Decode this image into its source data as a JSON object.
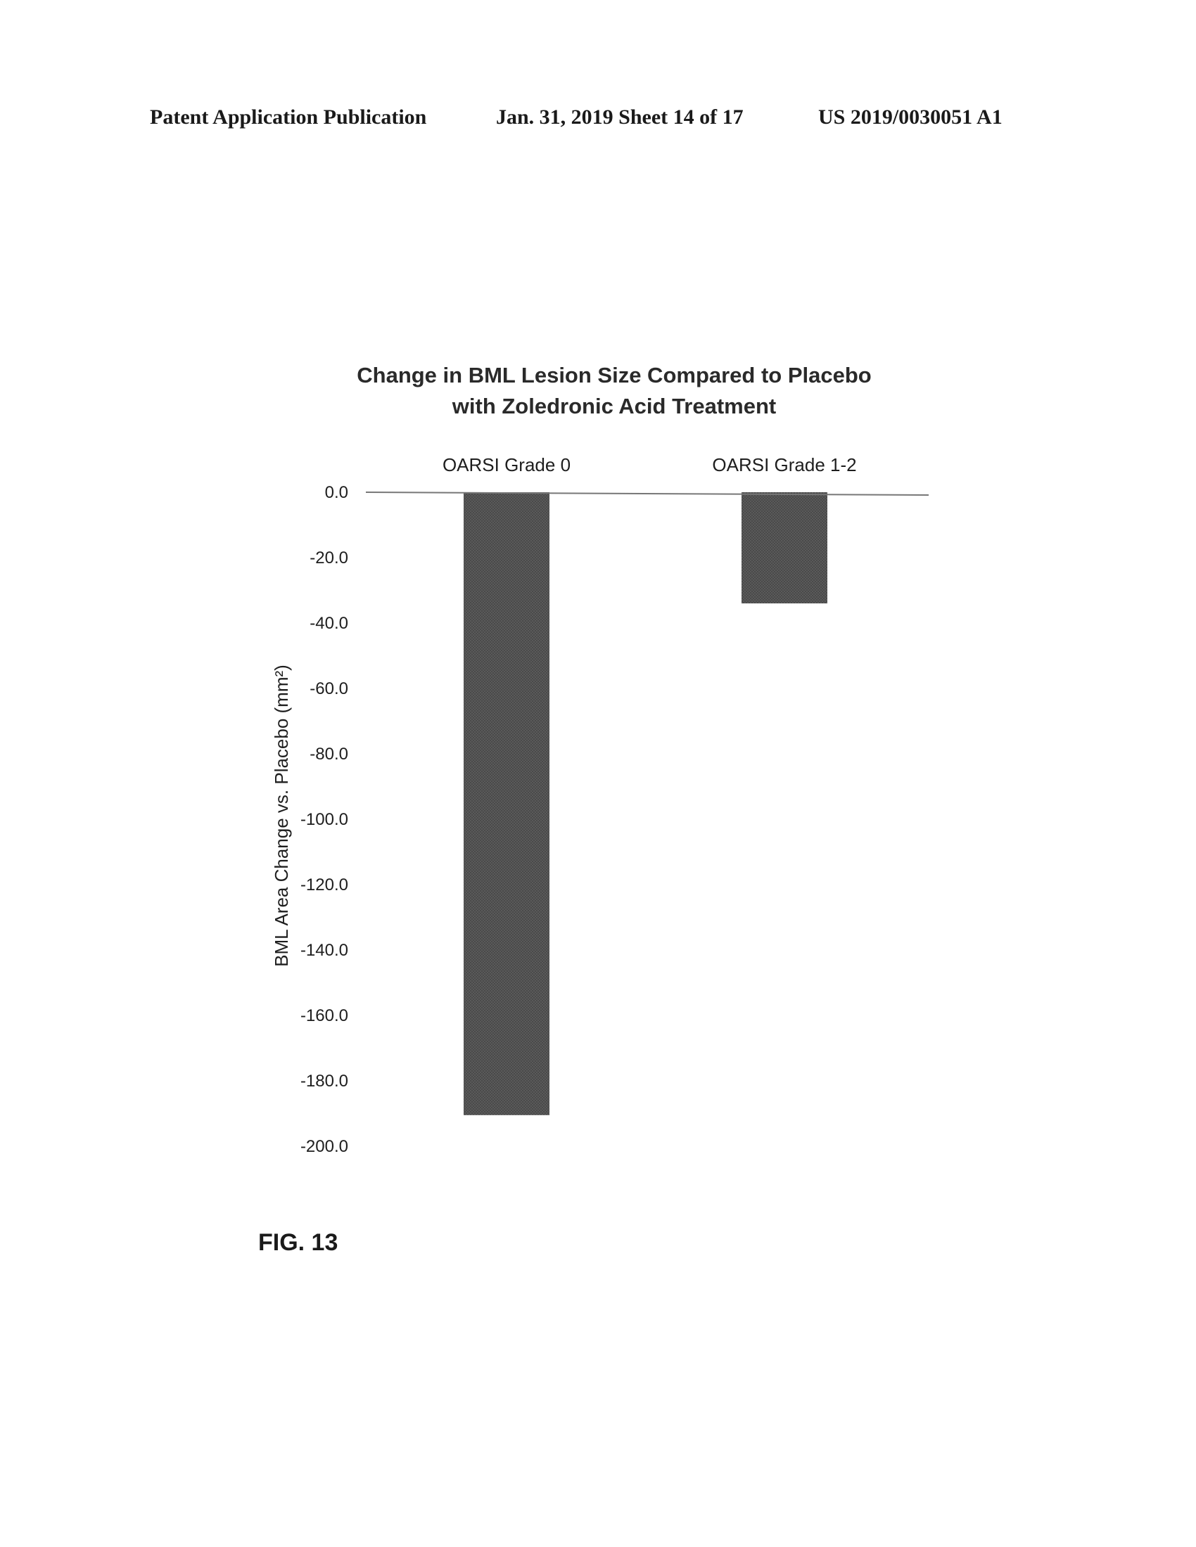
{
  "header": {
    "left": "Patent Application Publication",
    "middle": "Jan. 31, 2019  Sheet 14 of 17",
    "right": "US 2019/0030051 A1"
  },
  "figure_label": "FIG. 13",
  "colors": {
    "bar": "#555555",
    "baseline": "#777777"
  },
  "chart_data": {
    "type": "bar",
    "title_lines": [
      "Change in BML Lesion Size Compared to Placebo",
      "with Zoledronic Acid Treatment"
    ],
    "categories": [
      "OARSI Grade 0",
      "OARSI Grade 1-2"
    ],
    "values": [
      -190.5,
      -34
    ],
    "ylabel": "BML Area Change vs. Placebo (mm²)",
    "ylim": [
      -200,
      0
    ],
    "yticks": [
      "0.0",
      "-20.0",
      "-40.0",
      "-60.0",
      "-80.0",
      "-100.0",
      "-120.0",
      "-140.0",
      "-160.0",
      "-180.0",
      "-200.0"
    ],
    "grid": false,
    "category_labels_position": "top"
  }
}
